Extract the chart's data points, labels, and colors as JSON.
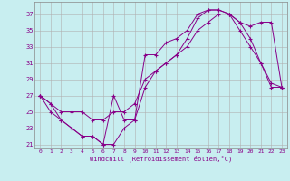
{
  "xlabel": "Windchill (Refroidissement éolien,°C)",
  "bg_color": "#c8eef0",
  "line_color": "#880088",
  "grid_color": "#b0b0b0",
  "xlim": [
    -0.5,
    23.5
  ],
  "ylim": [
    20.5,
    38.5
  ],
  "yticks": [
    21,
    23,
    25,
    27,
    29,
    31,
    33,
    35,
    37
  ],
  "xticks": [
    0,
    1,
    2,
    3,
    4,
    5,
    6,
    7,
    8,
    9,
    10,
    11,
    12,
    13,
    14,
    15,
    16,
    17,
    18,
    19,
    20,
    21,
    22,
    23
  ],
  "curves": [
    {
      "x": [
        0,
        1,
        2,
        3,
        4,
        5,
        6,
        7,
        8,
        9,
        10,
        11,
        12,
        13,
        14,
        15,
        16,
        17,
        18,
        19,
        20,
        21,
        22,
        23
      ],
      "y": [
        27,
        26,
        25,
        25,
        25,
        24,
        24,
        25,
        25,
        26,
        29,
        30,
        31,
        32,
        33,
        35,
        36,
        37,
        37,
        36,
        35.5,
        36,
        36,
        28
      ]
    },
    {
      "x": [
        0,
        1,
        2,
        3,
        4,
        5,
        6,
        7,
        8,
        9,
        10,
        11,
        12,
        13,
        14,
        15,
        16,
        17,
        18,
        19,
        20,
        21,
        22,
        23
      ],
      "y": [
        27,
        26,
        24,
        23,
        22,
        22,
        21,
        27,
        24,
        24,
        32,
        32,
        33.5,
        34,
        35,
        37,
        37.5,
        37.5,
        37,
        36,
        34,
        31,
        28,
        28
      ]
    },
    {
      "x": [
        0,
        1,
        2,
        3,
        4,
        5,
        6,
        7,
        8,
        9,
        10,
        11,
        12,
        13,
        14,
        15,
        16,
        17,
        18,
        19,
        20,
        21,
        22,
        23
      ],
      "y": [
        27,
        25,
        24,
        23,
        22,
        22,
        21,
        21,
        23,
        24,
        28,
        30,
        31,
        32,
        34,
        36.5,
        37.5,
        37.5,
        37,
        35,
        33,
        31,
        28.5,
        28
      ]
    }
  ]
}
